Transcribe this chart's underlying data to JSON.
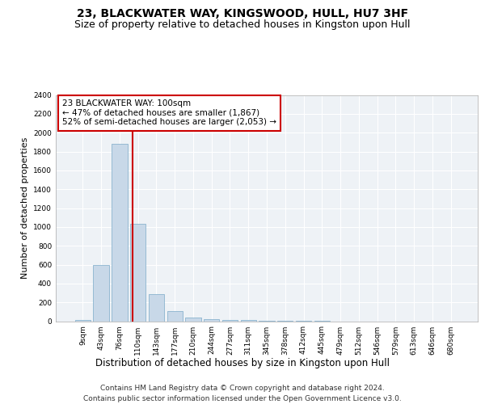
{
  "title1": "23, BLACKWATER WAY, KINGSWOOD, HULL, HU7 3HF",
  "title2": "Size of property relative to detached houses in Kingston upon Hull",
  "xlabel": "Distribution of detached houses by size in Kingston upon Hull",
  "ylabel": "Number of detached properties",
  "footer1": "Contains HM Land Registry data © Crown copyright and database right 2024.",
  "footer2": "Contains public sector information licensed under the Open Government Licence v3.0.",
  "annotation_line1": "23 BLACKWATER WAY: 100sqm",
  "annotation_line2": "← 47% of detached houses are smaller (1,867)",
  "annotation_line3": "52% of semi-detached houses are larger (2,053) →",
  "bin_labels": [
    "9sqm",
    "43sqm",
    "76sqm",
    "110sqm",
    "143sqm",
    "177sqm",
    "210sqm",
    "244sqm",
    "277sqm",
    "311sqm",
    "345sqm",
    "378sqm",
    "412sqm",
    "445sqm",
    "479sqm",
    "512sqm",
    "546sqm",
    "579sqm",
    "613sqm",
    "646sqm",
    "680sqm"
  ],
  "bar_values": [
    15,
    600,
    1880,
    1030,
    290,
    110,
    40,
    25,
    15,
    10,
    5,
    2,
    1,
    1,
    0,
    0,
    0,
    0,
    0,
    0,
    0
  ],
  "bar_color": "#c8d8e8",
  "bar_edgecolor": "#7aaac8",
  "vline_color": "#cc0000",
  "ylim": [
    0,
    2400
  ],
  "yticks": [
    0,
    200,
    400,
    600,
    800,
    1000,
    1200,
    1400,
    1600,
    1800,
    2000,
    2200,
    2400
  ],
  "bg_color": "#eef2f6",
  "grid_color": "#ffffff",
  "annotation_box_color": "#cc0000",
  "title1_fontsize": 10,
  "title2_fontsize": 9,
  "ylabel_fontsize": 8,
  "xlabel_fontsize": 8.5,
  "tick_fontsize": 6.5,
  "annot_fontsize": 7.5,
  "footer_fontsize": 6.5
}
